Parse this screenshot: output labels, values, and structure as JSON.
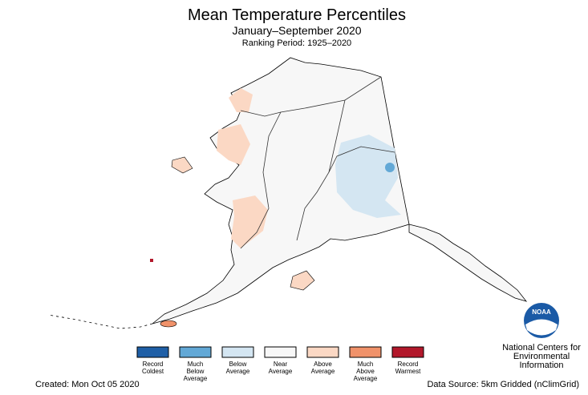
{
  "header": {
    "title": "Mean Temperature Percentiles",
    "subtitle": "January–September 2020",
    "ranking_period": "Ranking Period: 1925–2020"
  },
  "legend": [
    {
      "lines": [
        "Record",
        "Coldest"
      ],
      "color": "#1f5fa6"
    },
    {
      "lines": [
        "Much",
        "Below",
        "Average"
      ],
      "color": "#62a8d6"
    },
    {
      "lines": [
        "Below",
        "Average"
      ],
      "color": "#d4e6f2"
    },
    {
      "lines": [
        "Near",
        "Average"
      ],
      "color": "#f7f7f7"
    },
    {
      "lines": [
        "Above",
        "Average"
      ],
      "color": "#fbd8c4"
    },
    {
      "lines": [
        "Much",
        "Above",
        "Average"
      ],
      "color": "#f0926a"
    },
    {
      "lines": [
        "Record",
        "Warmest"
      ],
      "color": "#b2182b"
    }
  ],
  "logo": {
    "mark": "NOAA",
    "lines": [
      "National Centers for",
      "Environmental",
      "Information"
    ]
  },
  "footer": {
    "created": "Created: Mon Oct 05 2020",
    "source": "Data Source: 5km Gridded (nClimGrid)"
  }
}
